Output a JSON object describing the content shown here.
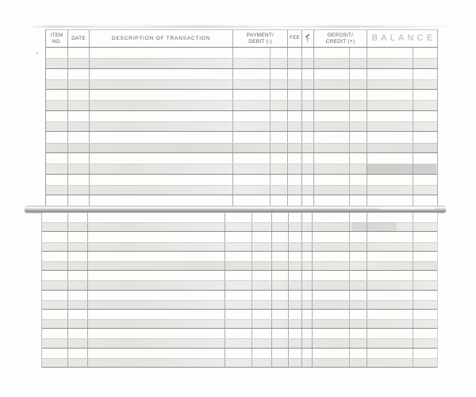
{
  "register": {
    "columns": [
      {
        "id": "item_no",
        "label_lines": [
          "ITEM",
          "NO."
        ]
      },
      {
        "id": "date",
        "label_lines": [
          "DATE"
        ]
      },
      {
        "id": "description",
        "label_lines": [
          "DESCRIPTION OF TRANSACTION"
        ]
      },
      {
        "id": "payment_debit",
        "label_lines": [
          "PAYMENT/",
          "DEBIT (-)"
        ]
      },
      {
        "id": "fee",
        "label_lines": [
          "FEE"
        ]
      },
      {
        "id": "check_t",
        "label_lines": [
          "✓",
          "T"
        ]
      },
      {
        "id": "deposit_credit",
        "label_lines": [
          "DEPOSIT/",
          "CREDIT (+)"
        ]
      },
      {
        "id": "balance",
        "label_lines": [
          "BALANCE"
        ]
      }
    ],
    "top_page": {
      "has_header": true,
      "visible_row_lines": 15,
      "entries": []
    },
    "bottom_page": {
      "has_header": false,
      "visible_row_lines": 16,
      "entries": []
    },
    "all_cells_blank": true
  },
  "colors": {
    "page_background": "#fefefe",
    "shaded_row": "#e9ebe7",
    "dark_rule": "#8b908e",
    "grid_line": "#a8adaa",
    "balance_header_text": "#b3b3b1",
    "divider_silver": "#c9cccb"
  }
}
